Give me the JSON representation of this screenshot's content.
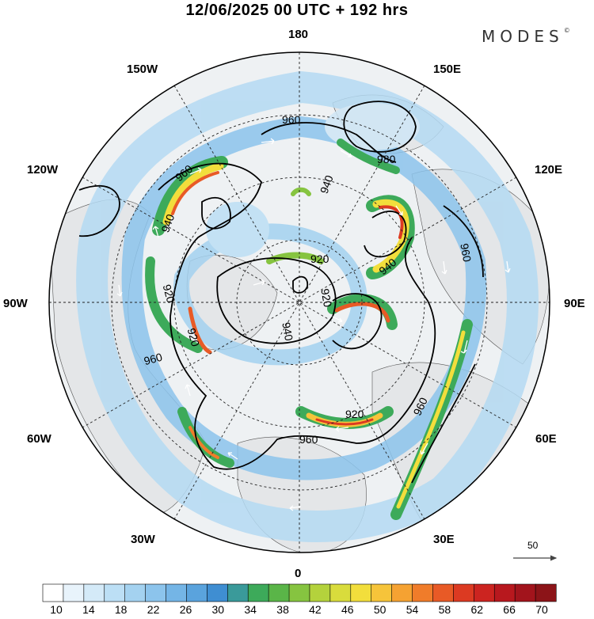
{
  "title": "12/06/2025  00 UTC  + 192 hrs",
  "brand": "MODES",
  "brand_mark": "©",
  "lon_labels": {
    "n180": "180",
    "w150": "150W",
    "e150": "150E",
    "w120": "120W",
    "e120": "120E",
    "w90": "90W",
    "e90": "90E",
    "w60": "60W",
    "e60": "60E",
    "w30": "30W",
    "e30": "30E",
    "s0": "0"
  },
  "contour_labels": [
    "960",
    "980",
    "940",
    "960",
    "940",
    "960",
    "920",
    "940",
    "920",
    "920",
    "920",
    "960",
    "960",
    "960",
    "920",
    "940"
  ],
  "vector_scale_label": "50",
  "colorbar": {
    "labels": [
      "10",
      "14",
      "18",
      "22",
      "26",
      "30",
      "34",
      "38",
      "42",
      "46",
      "50",
      "54",
      "58",
      "62",
      "66",
      "70"
    ],
    "colors": [
      "#ffffff",
      "#e8f3fb",
      "#d4eaf8",
      "#bcdff5",
      "#a4d2f0",
      "#8cc4ec",
      "#74b5e6",
      "#5aa3dd",
      "#3f8ed2",
      "#3a9a9a",
      "#3daa5a",
      "#5ab548",
      "#86c440",
      "#b4d23c",
      "#d9dc3c",
      "#f2de3c",
      "#f6c43a",
      "#f5a232",
      "#f07c2a",
      "#e85a26",
      "#dc3a22",
      "#cc2420",
      "#b8181e",
      "#a2141c",
      "#8c1418"
    ]
  }
}
